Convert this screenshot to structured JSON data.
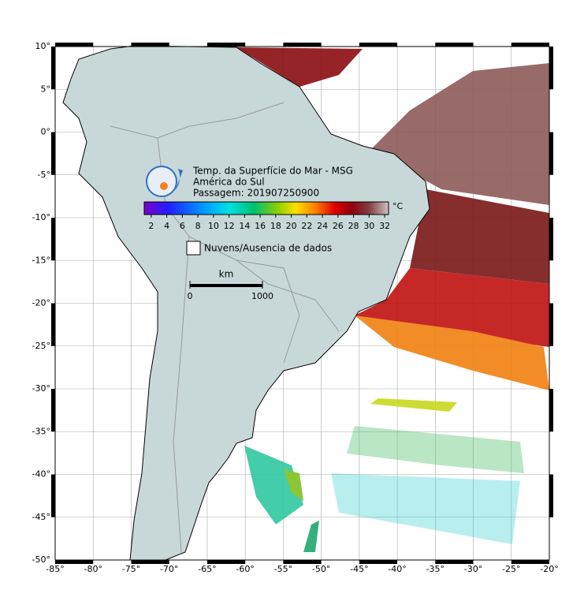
{
  "map": {
    "xlim": [
      -85,
      -20
    ],
    "ylim": [
      -50,
      10
    ],
    "xticks": [
      {
        "value": -85,
        "label": "-85°"
      },
      {
        "value": -80,
        "label": "-80°"
      },
      {
        "value": -75,
        "label": "-75°"
      },
      {
        "value": -70,
        "label": "-70°"
      },
      {
        "value": -65,
        "label": "-65°"
      },
      {
        "value": -60,
        "label": "-60°"
      },
      {
        "value": -55,
        "label": "-55°"
      },
      {
        "value": -50,
        "label": "-50°"
      },
      {
        "value": -45,
        "label": "-45°"
      },
      {
        "value": -40,
        "label": "-40°"
      },
      {
        "value": -35,
        "label": "-35°"
      },
      {
        "value": -30,
        "label": "-30°"
      },
      {
        "value": -25,
        "label": "-25°"
      },
      {
        "value": -20,
        "label": "-20°"
      }
    ],
    "yticks": [
      {
        "value": 10,
        "label": "10°"
      },
      {
        "value": 5,
        "label": "5°"
      },
      {
        "value": 0,
        "label": "0°"
      },
      {
        "value": -5,
        "label": "-5°"
      },
      {
        "value": -10,
        "label": "-10°"
      },
      {
        "value": -15,
        "label": "-15°"
      },
      {
        "value": -20,
        "label": "-20°"
      },
      {
        "value": -25,
        "label": "-25°"
      },
      {
        "value": -30,
        "label": "-30°"
      },
      {
        "value": -35,
        "label": "-35°"
      },
      {
        "value": -40,
        "label": "-40°"
      },
      {
        "value": -45,
        "label": "-45°"
      },
      {
        "value": -50,
        "label": "-50°"
      }
    ]
  },
  "legend": {
    "title_lines": [
      "Temp. da Superfície do Mar - MSG",
      "América do Sul",
      "Passagem: 201907250900"
    ],
    "colorbar": {
      "clim": [
        1.1,
        32.5
      ],
      "ticks": [
        2,
        4,
        6,
        8,
        10,
        12,
        14,
        16,
        18,
        20,
        22,
        24,
        26,
        28,
        30,
        32
      ],
      "unit": "°C"
    },
    "no_data": "Nuvens/Ausencia de dados",
    "scale": {
      "unit": "km",
      "ticks": [
        0,
        1000
      ]
    }
  }
}
